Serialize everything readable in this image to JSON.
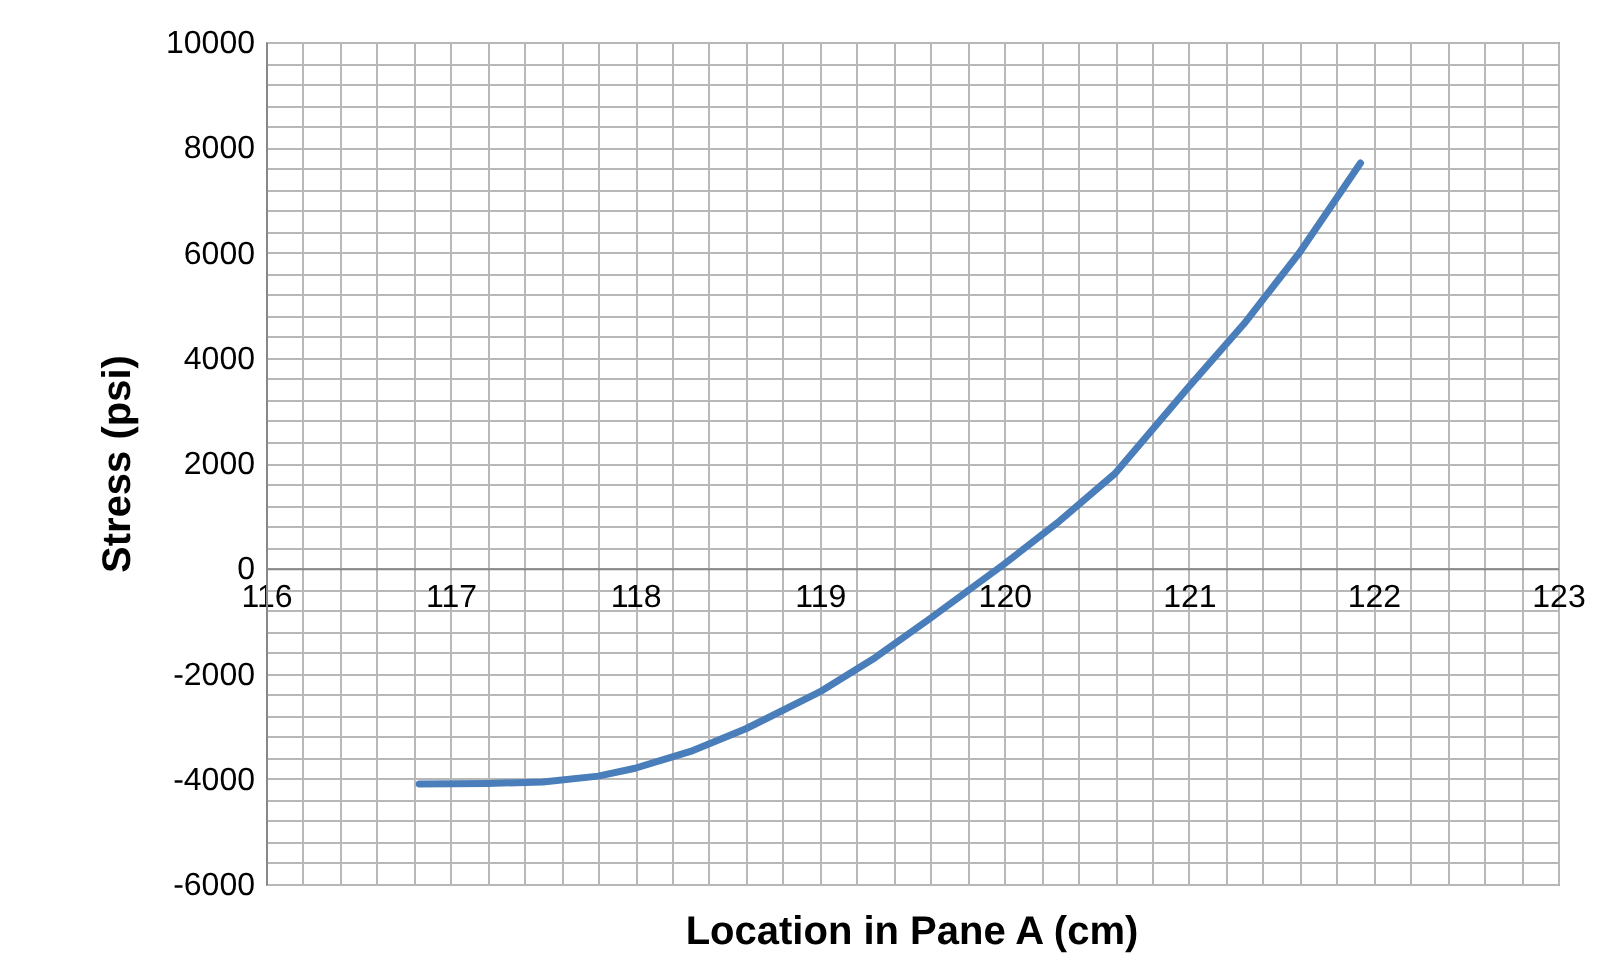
{
  "chart_data": {
    "type": "line",
    "xlabel": "Location in Pane A (cm)",
    "ylabel": "Stress (psi)",
    "x": [
      116.83,
      117.2,
      117.5,
      117.8,
      118,
      118.3,
      118.6,
      119,
      119.3,
      119.6,
      120,
      120.3,
      120.6,
      121,
      121.3,
      121.6,
      121.93
    ],
    "series": [
      {
        "color": "#4a7ebb",
        "values": [
          -4100,
          -4090,
          -4060,
          -3950,
          -3800,
          -3480,
          -3050,
          -2350,
          -1700,
          -950,
          80,
          900,
          1800,
          3450,
          4650,
          6000,
          7700
        ]
      }
    ],
    "xlim": [
      116,
      123
    ],
    "xticks": [
      116,
      117,
      118,
      119,
      120,
      121,
      122,
      123
    ],
    "ylim": [
      -6000,
      10000
    ],
    "yticks": [
      -6000,
      -4000,
      -2000,
      0,
      2000,
      4000,
      6000,
      8000,
      10000
    ],
    "grid": true,
    "marker": "none",
    "line_style": "solid"
  }
}
